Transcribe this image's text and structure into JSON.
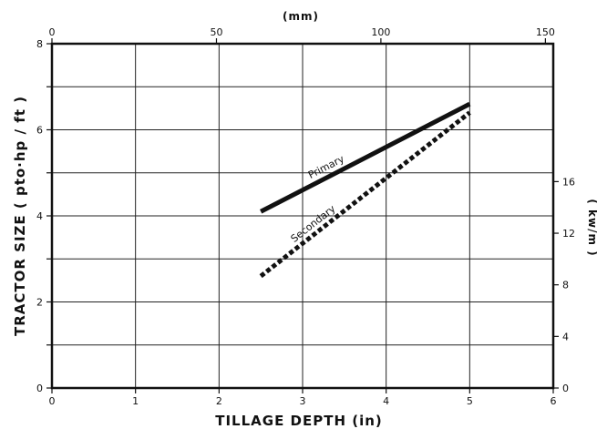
{
  "chart_data": {
    "type": "line",
    "xlabel": "TILLAGE DEPTH (in)",
    "ylabel": "TRACTOR SIZE ( pto·hp / ft )",
    "top_axis_label": "(mm)",
    "right_axis_label": "( kw/m )",
    "xlim": [
      0,
      6
    ],
    "ylim": [
      0,
      8
    ],
    "x_ticks": [
      "0",
      "1",
      "2",
      "3",
      "4",
      "5",
      "6"
    ],
    "y_ticks": [
      "0",
      "2",
      "4",
      "6",
      "8"
    ],
    "top_ticks": [
      {
        "label": "0",
        "x": 0
      },
      {
        "label": "50",
        "x": 1.969
      },
      {
        "label": "100",
        "x": 3.937
      },
      {
        "label": "150",
        "x": 5.906
      }
    ],
    "right_ticks": [
      {
        "label": "0",
        "y": 0
      },
      {
        "label": "4",
        "y": 1.199
      },
      {
        "label": "8",
        "y": 2.398
      },
      {
        "label": "12",
        "y": 3.597
      },
      {
        "label": "16",
        "y": 4.796
      }
    ],
    "grid": true,
    "series": [
      {
        "name": "Primary",
        "style": "solid",
        "x": [
          2.5,
          5.0
        ],
        "y": [
          4.1,
          6.6
        ]
      },
      {
        "name": "Secondary",
        "style": "dotted",
        "x": [
          2.5,
          5.0
        ],
        "y": [
          2.6,
          6.4
        ]
      }
    ]
  }
}
